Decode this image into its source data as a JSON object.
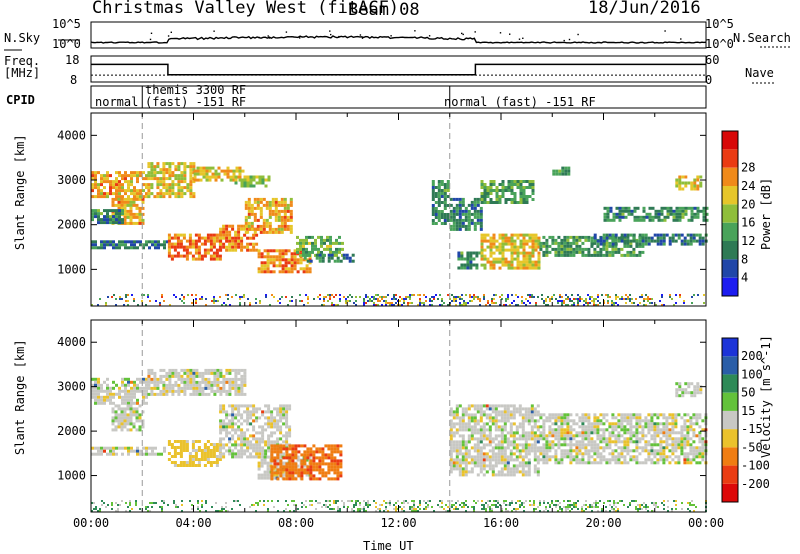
{
  "header": {
    "title": "Christmas Valley West (fitACF)",
    "beam": "Beam 08",
    "date": "18/Jun/2016"
  },
  "strips": {
    "nsky_label": "N.Sky",
    "nsearch_label": "N.Search",
    "freq_label_1": "Freq.",
    "freq_label_2": "[MHz]",
    "nave_label": "Nave",
    "cpid_label": "CPID",
    "nsky_ticks": [
      "10^5",
      "10^0"
    ],
    "nsearch_ticks": [
      "10^5",
      "10^0"
    ],
    "freq_ticks": [
      "18",
      "8"
    ],
    "nave_ticks": [
      "60",
      "0"
    ],
    "cpid_segments": [
      {
        "label": "normal",
        "start_h": 0.0,
        "end_h": 2.0
      },
      {
        "label": "themis 3300 RF",
        "label2": "(fast) -151 RF",
        "start_h": 2.0,
        "end_h": 14.0
      },
      {
        "label": "normal (fast) -151 RF",
        "start_h": 14.0,
        "end_h": 24.0
      }
    ],
    "freq_level_mhz": [
      {
        "start_h": 0.0,
        "end_h": 3.0,
        "value": 14.5
      },
      {
        "start_h": 3.0,
        "end_h": 15.0,
        "value": 10.2
      },
      {
        "start_h": 15.0,
        "end_h": 24.0,
        "value": 14.5
      }
    ],
    "nave_level": 16
  },
  "chart_data": [
    {
      "type": "heatmap",
      "name": "power",
      "xlabel": "",
      "ylabel": "Slant Range [km]",
      "xlim_hours": [
        0,
        24
      ],
      "ylim_km": [
        180,
        4500
      ],
      "yticks": [
        1000,
        2000,
        3000,
        4000
      ],
      "colorbar": {
        "label": "Power [dB]",
        "ticks": [
          "4",
          "8",
          "12",
          "16",
          "20",
          "24",
          "28"
        ],
        "colors": [
          "#1c1cf0",
          "#2046a8",
          "#2f7a55",
          "#49a35a",
          "#8fbe3a",
          "#e6c62a",
          "#f08a1a",
          "#ea3a12",
          "#d80808"
        ]
      },
      "echo_regions": [
        {
          "t0": 0.0,
          "t1": 2.2,
          "r0": 2650,
          "r1": 3200,
          "value": 24
        },
        {
          "t0": 0.8,
          "t1": 2.0,
          "r0": 2000,
          "r1": 2600,
          "value": 24
        },
        {
          "t0": 0.0,
          "t1": 1.2,
          "r0": 2050,
          "r1": 2350,
          "value": 12
        },
        {
          "t0": 0.0,
          "t1": 3.0,
          "r0": 1450,
          "r1": 1650,
          "value": 10
        },
        {
          "t0": 2.2,
          "t1": 4.0,
          "r0": 2650,
          "r1": 3400,
          "value": 21
        },
        {
          "t0": 4.0,
          "t1": 6.0,
          "r0": 3000,
          "r1": 3300,
          "value": 22
        },
        {
          "t0": 3.0,
          "t1": 5.0,
          "r0": 1200,
          "r1": 1800,
          "value": 27
        },
        {
          "t0": 5.0,
          "t1": 6.5,
          "r0": 1400,
          "r1": 2000,
          "value": 26
        },
        {
          "t0": 6.0,
          "t1": 7.8,
          "r0": 1800,
          "r1": 2600,
          "value": 24
        },
        {
          "t0": 5.6,
          "t1": 7.0,
          "r0": 2850,
          "r1": 3100,
          "value": 18
        },
        {
          "t0": 6.5,
          "t1": 8.5,
          "r0": 950,
          "r1": 1450,
          "value": 26
        },
        {
          "t0": 8.0,
          "t1": 9.8,
          "r0": 1300,
          "r1": 1750,
          "value": 16
        },
        {
          "t0": 8.3,
          "t1": 10.2,
          "r0": 1150,
          "r1": 1350,
          "value": 10
        },
        {
          "t0": 13.3,
          "t1": 14.0,
          "r0": 2000,
          "r1": 3000,
          "value": 12
        },
        {
          "t0": 14.0,
          "t1": 15.2,
          "r0": 1900,
          "r1": 2600,
          "value": 11
        },
        {
          "t0": 14.3,
          "t1": 15.2,
          "r0": 1000,
          "r1": 1400,
          "value": 12
        },
        {
          "t0": 15.2,
          "t1": 17.2,
          "r0": 2500,
          "r1": 3000,
          "value": 14
        },
        {
          "t0": 15.2,
          "t1": 17.5,
          "r0": 1050,
          "r1": 1800,
          "value": 22
        },
        {
          "t0": 17.5,
          "t1": 21.5,
          "r0": 1300,
          "r1": 1750,
          "value": 13
        },
        {
          "t0": 19.5,
          "t1": 24.0,
          "r0": 1550,
          "r1": 1800,
          "value": 10
        },
        {
          "t0": 20.0,
          "t1": 24.0,
          "r0": 2100,
          "r1": 2400,
          "value": 12
        },
        {
          "t0": 22.8,
          "t1": 23.8,
          "r0": 2800,
          "r1": 3100,
          "value": 22
        },
        {
          "t0": 18.0,
          "t1": 18.7,
          "r0": 3100,
          "r1": 3300,
          "value": 12
        }
      ]
    },
    {
      "type": "heatmap",
      "name": "velocity",
      "xlabel": "Time UT",
      "ylabel": "Slant Range [km]",
      "xlim_hours": [
        0,
        24
      ],
      "ylim_km": [
        180,
        4500
      ],
      "yticks": [
        1000,
        2000,
        3000,
        4000
      ],
      "xtick_labels": [
        "00:00",
        "04:00",
        "08:00",
        "12:00",
        "16:00",
        "20:00",
        "00:00"
      ],
      "colorbar": {
        "label": "Velocity [m s^-1]",
        "ticks": [
          "200",
          "100",
          "50",
          "15",
          "-15",
          "-50",
          "-100",
          "-200"
        ],
        "colors": [
          "#1c34d8",
          "#2a5ea8",
          "#2e8a57",
          "#63c23a",
          "#c8c8c4",
          "#eac22c",
          "#f07d12",
          "#ea3c12",
          "#dc0808"
        ]
      },
      "echo_regions": [
        {
          "t0": 0.0,
          "t1": 2.2,
          "r0": 2650,
          "r1": 3200,
          "value": 0
        },
        {
          "t0": 0.8,
          "t1": 2.0,
          "r0": 2000,
          "r1": 2600,
          "value": 0
        },
        {
          "t0": 0.0,
          "t1": 3.0,
          "r0": 1450,
          "r1": 1650,
          "value": 0
        },
        {
          "t0": 2.2,
          "t1": 6.0,
          "r0": 2800,
          "r1": 3400,
          "value": 0
        },
        {
          "t0": 3.0,
          "t1": 5.0,
          "r0": 1200,
          "r1": 1800,
          "value": -30
        },
        {
          "t0": 5.0,
          "t1": 7.8,
          "r0": 1400,
          "r1": 2600,
          "value": 0
        },
        {
          "t0": 6.5,
          "t1": 8.5,
          "r0": 950,
          "r1": 1450,
          "value": 0
        },
        {
          "t0": 7.0,
          "t1": 9.8,
          "r0": 950,
          "r1": 1700,
          "value": -90
        },
        {
          "t0": 14.0,
          "t1": 17.5,
          "r0": 1000,
          "r1": 2600,
          "value": 0
        },
        {
          "t0": 17.5,
          "t1": 24.0,
          "r0": 1300,
          "r1": 2400,
          "value": 0
        },
        {
          "t0": 22.8,
          "t1": 23.8,
          "r0": 2800,
          "r1": 3100,
          "value": 0
        }
      ]
    }
  ]
}
